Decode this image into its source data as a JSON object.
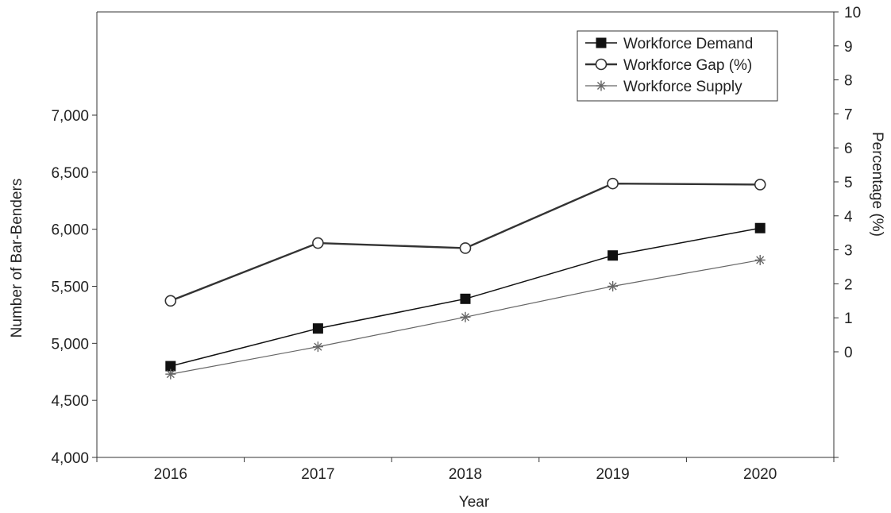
{
  "chart_data": {
    "type": "line",
    "xlabel": "Year",
    "ylabel_left": "Number of Bar-Benders",
    "ylabel_right": "Percentage (%)",
    "categories": [
      "2016",
      "2017",
      "2018",
      "2019",
      "2020"
    ],
    "y_left": {
      "min": 4000,
      "max": 7000,
      "ticks": [
        "4,000",
        "4,500",
        "5,000",
        "5,500",
        "6,000",
        "6,500",
        "7,000"
      ],
      "tick_values": [
        4000,
        4500,
        5000,
        5500,
        6000,
        6500,
        7000
      ]
    },
    "y_right": {
      "min": 0,
      "max": 10,
      "ticks": [
        "0",
        "1",
        "2",
        "3",
        "4",
        "5",
        "6",
        "7",
        "8",
        "9",
        "10"
      ]
    },
    "series": [
      {
        "name": "Workforce Demand",
        "axis": "left",
        "marker": "square",
        "color": "#111111",
        "values": [
          4800,
          5130,
          5390,
          5770,
          6010
        ]
      },
      {
        "name": "Workforce Gap (%)",
        "axis": "right",
        "marker": "circle",
        "color": "#333333",
        "values": [
          1.5,
          3.2,
          3.05,
          4.95,
          4.92
        ]
      },
      {
        "name": "Workforce Supply",
        "axis": "left",
        "marker": "asterisk",
        "color": "#666666",
        "values": [
          4730,
          4970,
          5230,
          5500,
          5730
        ]
      }
    ],
    "legend_position": "top-right",
    "grid": false
  }
}
